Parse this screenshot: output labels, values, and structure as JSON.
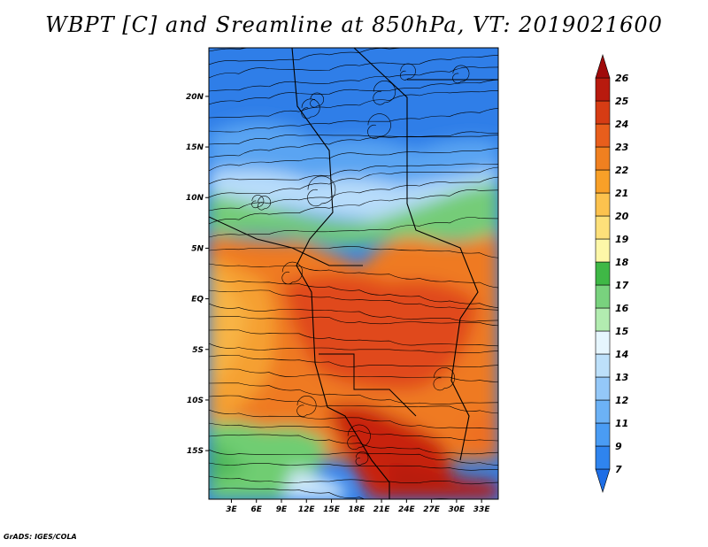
{
  "title": "WBPT [C] and Sreamline at 850hPa, VT: 2019021600",
  "credit": "GrADS: IGES/COLA",
  "chart_data": {
    "type": "heatmap",
    "title": "WBPT [C] and Sreamline at 850hPa, VT: 2019021600",
    "variable": "Wet-bulb potential temperature",
    "units": "C",
    "level": "850hPa",
    "valid_time": "2019021600",
    "overlay": "streamlines",
    "x_axis": {
      "labels": [
        "3E",
        "6E",
        "9E",
        "12E",
        "15E",
        "18E",
        "21E",
        "24E",
        "27E",
        "30E",
        "33E"
      ],
      "values": [
        3,
        6,
        9,
        12,
        15,
        18,
        21,
        24,
        27,
        30,
        33
      ],
      "range": [
        0.3,
        35.0
      ]
    },
    "y_axis": {
      "labels": [
        "20N",
        "15N",
        "10N",
        "5N",
        "EQ",
        "5S",
        "10S",
        "15S"
      ],
      "values": [
        20,
        15,
        10,
        5,
        0,
        -5,
        -10,
        -15
      ],
      "range": [
        -19.8,
        24.8
      ]
    },
    "colorbar": {
      "labels": [
        "7",
        "9",
        "11",
        "12",
        "13",
        "14",
        "15",
        "16",
        "17",
        "18",
        "19",
        "20",
        "21",
        "22",
        "23",
        "24",
        "25",
        "26"
      ],
      "colors": [
        "#1e6ee6",
        "#2f84ee",
        "#4a9cf4",
        "#6cb2f6",
        "#94c8f8",
        "#bde0fa",
        "#e6f6fe",
        "#b2ecb0",
        "#79d27e",
        "#3fb846",
        "#fdf7a8",
        "#fde07a",
        "#fcc24e",
        "#f8a028",
        "#f08020",
        "#e85e1c",
        "#d63c14",
        "#b81a0e",
        "#a00a0a"
      ],
      "orientation": "vertical",
      "extend": "both"
    },
    "regions": [
      {
        "area": "north of 10N",
        "wbpt_range": [
          7,
          14
        ]
      },
      {
        "area": "5N to 10N band",
        "wbpt_range": [
          15,
          18
        ]
      },
      {
        "area": "equator to 12S interior",
        "wbpt_range": [
          23,
          25
        ]
      },
      {
        "area": "south-central 12S to 20S",
        "wbpt_range": [
          25,
          26
        ]
      },
      {
        "area": "southwest 12S to 20S",
        "wbpt_range": [
          16,
          18
        ]
      }
    ]
  },
  "colors": {
    "cold": "#2a7ae8",
    "cool": "#8cc4f6",
    "green": "#6fcd72",
    "warm": "#f07822",
    "hot": "#c8240e",
    "border": "#000000"
  }
}
